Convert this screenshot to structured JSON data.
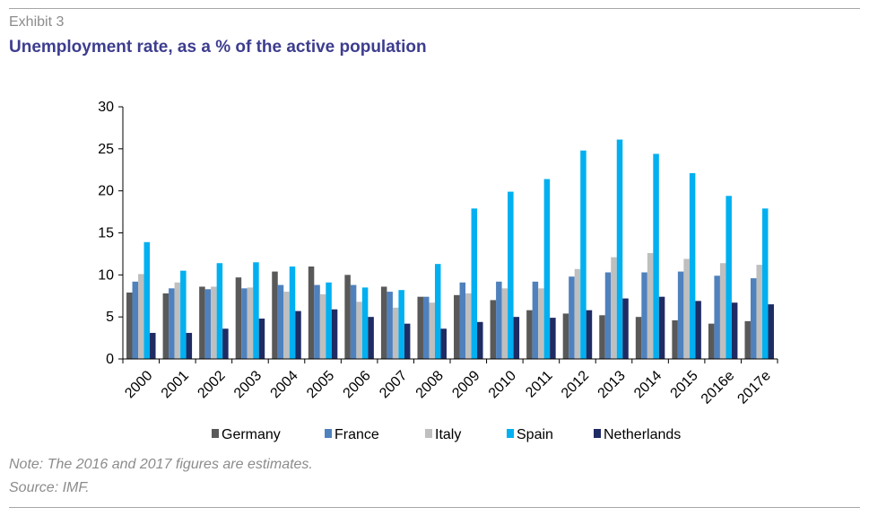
{
  "header": {
    "exhibit": "Exhibit 3",
    "title": "Unemployment rate, as a % of the active population"
  },
  "footer": {
    "note": "Note: The 2016 and 2017 figures are estimates.",
    "source": "Source: IMF."
  },
  "chart_data": {
    "type": "bar",
    "title": "Unemployment rate, as a % of the active population",
    "xlabel": "",
    "ylabel": "",
    "ylim": [
      0,
      30
    ],
    "yticks": [
      0,
      5,
      10,
      15,
      20,
      25,
      30
    ],
    "grid": false,
    "legend_position": "bottom",
    "categories": [
      "2000",
      "2001",
      "2002",
      "2003",
      "2004",
      "2005",
      "2006",
      "2007",
      "2008",
      "2009",
      "2010",
      "2011",
      "2012",
      "2013",
      "2014",
      "2015",
      "2016e",
      "2017e"
    ],
    "series": [
      {
        "name": "Germany",
        "color": "#595959",
        "values": [
          7.9,
          7.8,
          8.6,
          9.7,
          10.4,
          11.0,
          10.0,
          8.6,
          7.4,
          7.6,
          7.0,
          5.8,
          5.4,
          5.2,
          5.0,
          4.6,
          4.2,
          4.5
        ]
      },
      {
        "name": "France",
        "color": "#4f81bd",
        "values": [
          9.2,
          8.4,
          8.3,
          8.4,
          8.8,
          8.8,
          8.8,
          8.0,
          7.4,
          9.1,
          9.2,
          9.2,
          9.8,
          10.3,
          10.3,
          10.4,
          9.9,
          9.6
        ]
      },
      {
        "name": "Italy",
        "color": "#bfbfbf",
        "values": [
          10.1,
          9.1,
          8.6,
          8.5,
          8.0,
          7.7,
          6.8,
          6.1,
          6.7,
          7.8,
          8.4,
          8.4,
          10.7,
          12.1,
          12.6,
          11.9,
          11.4,
          11.2
        ]
      },
      {
        "name": "Spain",
        "color": "#00b0f0",
        "values": [
          13.9,
          10.5,
          11.4,
          11.5,
          11.0,
          9.1,
          8.5,
          8.2,
          11.3,
          17.9,
          19.9,
          21.4,
          24.8,
          26.1,
          24.4,
          22.1,
          19.4,
          17.9
        ]
      },
      {
        "name": "Netherlands",
        "color": "#1f2b63",
        "values": [
          3.1,
          3.1,
          3.6,
          4.8,
          5.7,
          5.9,
          5.0,
          4.2,
          3.6,
          4.4,
          5.0,
          4.9,
          5.8,
          7.2,
          7.4,
          6.9,
          6.7,
          6.5
        ]
      }
    ]
  }
}
